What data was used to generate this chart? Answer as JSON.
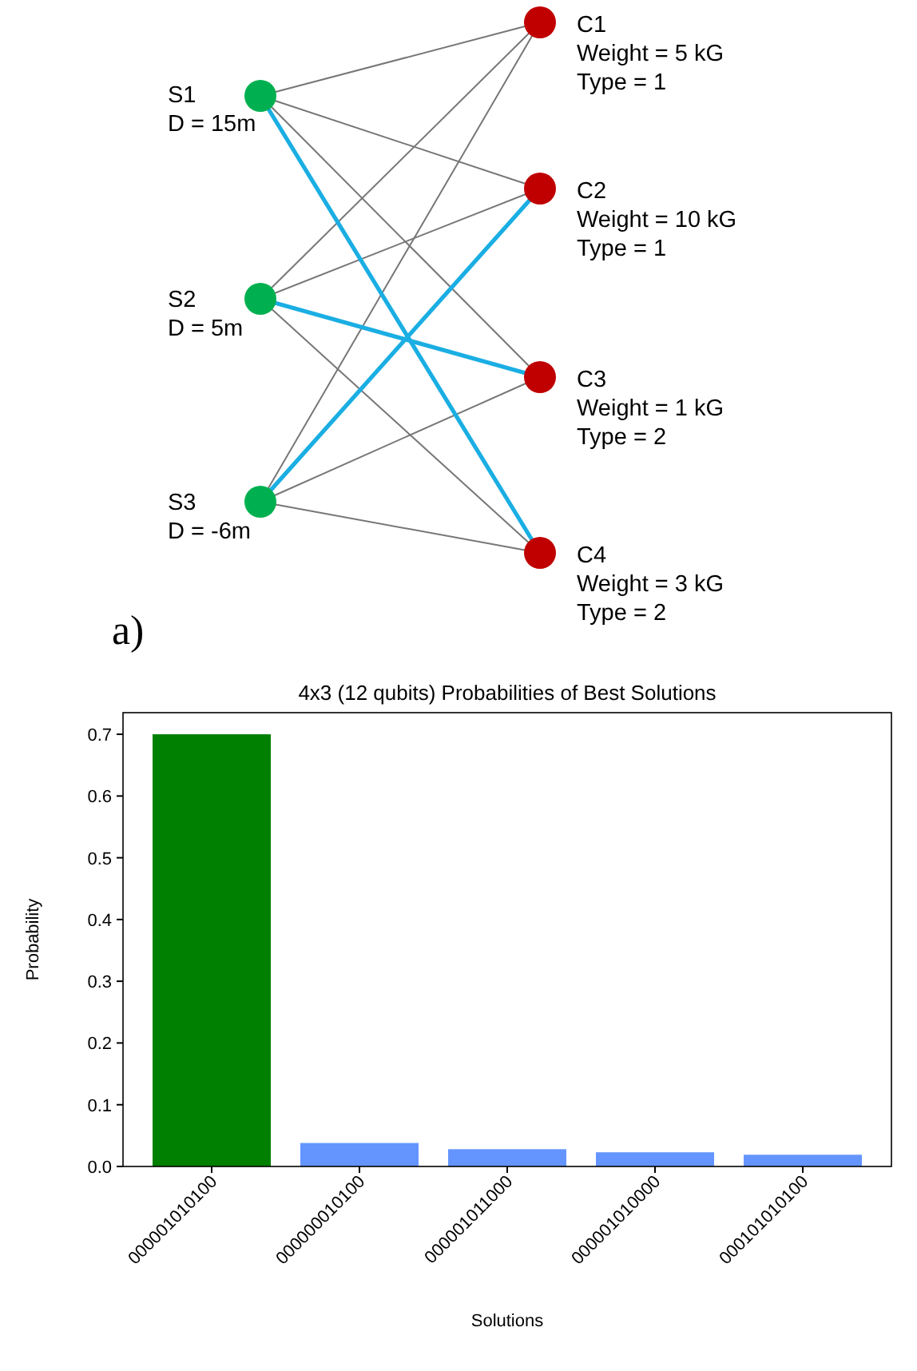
{
  "chart_data": [
    {
      "type": "other",
      "annotations": [
        "S1\nD = 15m",
        "S2\nD = 5m",
        "S3\nD = -6m",
        "C1\nWeight = 5 kG\nType = 1",
        "C2\nWeight = 10 kG\nType = 1",
        "C3\nWeight = 1 kG\nType = 2",
        "C4\nWeight = 3 kG\nType = 2",
        "a)"
      ]
    },
    {
      "type": "bar",
      "title": "4x3 (12 qubits) Probabilities of Best Solutions",
      "xlabel": "Solutions",
      "ylabel": "Probability",
      "categories": [
        "000001010100",
        "000000010100",
        "000001011000",
        "000001010000",
        "000101010100"
      ],
      "values": [
        0.7,
        0.038,
        0.028,
        0.023,
        0.019
      ],
      "colors": [
        "#008000",
        "#6495ff",
        "#6495ff",
        "#6495ff",
        "#6495ff"
      ],
      "ylim": [
        0,
        0.735
      ],
      "yticks": [
        {
          "value": 0,
          "label": "0.0"
        },
        0.1,
        0.2,
        0.3,
        0.4,
        0.5,
        0.6,
        0.7
      ]
    }
  ]
}
